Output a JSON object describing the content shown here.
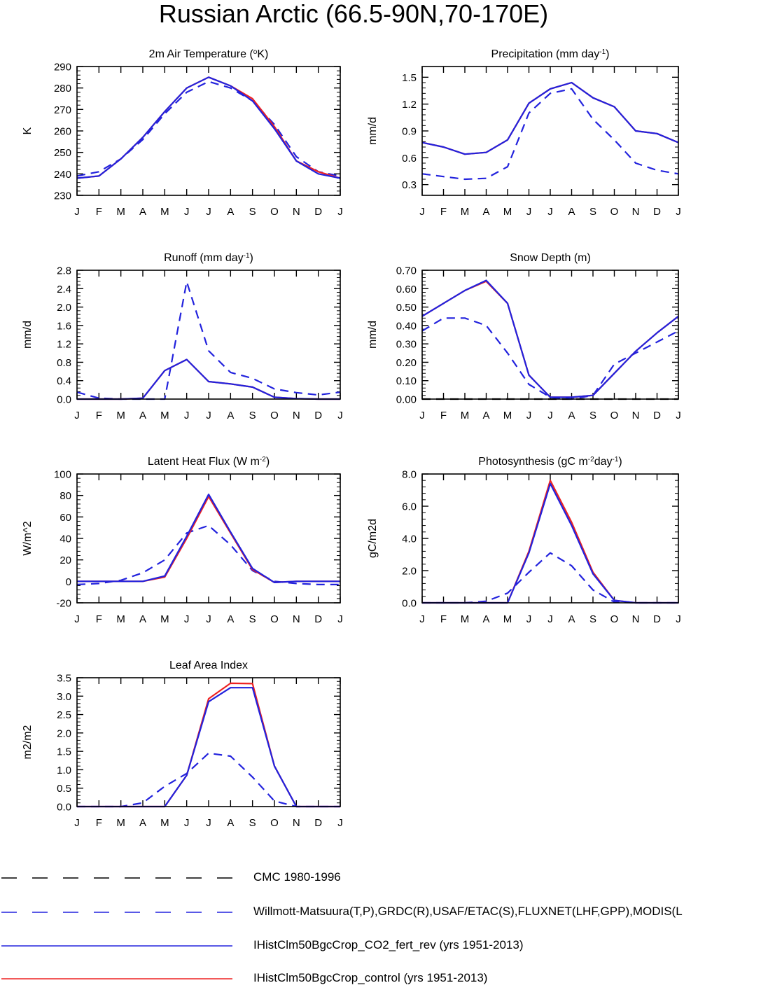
{
  "title": "Russian Arctic (66.5-90N,70-170E)",
  "months": [
    "J",
    "F",
    "M",
    "A",
    "M",
    "J",
    "J",
    "A",
    "S",
    "O",
    "N",
    "D",
    "J"
  ],
  "colors": {
    "blue": "#2222dd",
    "red": "#ee2222",
    "black": "#000000"
  },
  "legend": [
    {
      "label": "CMC 1980-1996",
      "color": "#000000",
      "dash": "dashed"
    },
    {
      "label": "Willmott-Matsuura(T,P),GRDC(R),USAF/ETAC(S),FLUXNET(LHF,GPP),MODIS(L",
      "color": "#2222dd",
      "dash": "dashed"
    },
    {
      "label": "IHistClm50BgcCrop_CO2_fert_rev (yrs 1951-2013)",
      "color": "#2222dd",
      "dash": "solid"
    },
    {
      "label": "IHistClm50BgcCrop_control (yrs 1951-2013)",
      "color": "#ee2222",
      "dash": "solid"
    }
  ],
  "chart_data": [
    {
      "type": "line",
      "title": "2m Air Temperature",
      "title_html": "2m Air Temperature (<tspan baseline-shift=\"super\" font-size=\"10\">o</tspan>K)",
      "ylabel": "K",
      "ylim": [
        230,
        290
      ],
      "yticks": [
        "230",
        "240",
        "250",
        "260",
        "270",
        "280",
        "290"
      ],
      "x": [
        "J",
        "F",
        "M",
        "A",
        "M",
        "J",
        "J",
        "A",
        "S",
        "O",
        "N",
        "D",
        "J"
      ],
      "series": [
        {
          "values": [
            239,
            241,
            247,
            256,
            268,
            278,
            283,
            280,
            274,
            263,
            248,
            241,
            239
          ],
          "color": "#2222dd",
          "dash": "dashed"
        },
        {
          "values": [
            238,
            239,
            247,
            257,
            269,
            280,
            285,
            281,
            275,
            262,
            246,
            241,
            238
          ],
          "color": "#ee2222",
          "dash": "solid"
        },
        {
          "values": [
            238,
            239,
            247,
            257,
            269,
            280,
            285,
            281,
            274,
            261,
            246,
            240,
            238
          ],
          "color": "#2222dd",
          "dash": "solid"
        }
      ]
    },
    {
      "type": "line",
      "title": "Precipitation",
      "title_html": "Precipitation (mm day<tspan baseline-shift=\"super\" font-size=\"10\">-1</tspan>)",
      "ylabel": "mm/d",
      "ylim": [
        0.18,
        1.62
      ],
      "yticks": [
        "0.3",
        "0.6",
        "0.9",
        "1.2",
        "1.5"
      ],
      "x": [
        "J",
        "F",
        "M",
        "A",
        "M",
        "J",
        "J",
        "A",
        "S",
        "O",
        "N",
        "D",
        "J"
      ],
      "series": [
        {
          "values": [
            0.42,
            0.39,
            0.36,
            0.37,
            0.5,
            1.1,
            1.32,
            1.37,
            1.03,
            0.8,
            0.54,
            0.46,
            0.42
          ],
          "color": "#2222dd",
          "dash": "dashed"
        },
        {
          "values": [
            0.77,
            0.72,
            0.64,
            0.66,
            0.8,
            1.21,
            1.37,
            1.44,
            1.27,
            1.17,
            0.9,
            0.87,
            0.77
          ],
          "color": "#ee2222",
          "dash": "solid"
        },
        {
          "values": [
            0.77,
            0.72,
            0.64,
            0.66,
            0.8,
            1.21,
            1.37,
            1.44,
            1.27,
            1.17,
            0.9,
            0.87,
            0.77
          ],
          "color": "#2222dd",
          "dash": "solid"
        }
      ]
    },
    {
      "type": "line",
      "title": "Runoff",
      "title_html": "Runoff (mm day<tspan baseline-shift=\"super\" font-size=\"10\">-1</tspan>)",
      "ylabel": "mm/d",
      "ylim": [
        0,
        2.8
      ],
      "yticks": [
        "0.0",
        "0.4",
        "0.8",
        "1.2",
        "1.6",
        "2.0",
        "2.4",
        "2.8"
      ],
      "x": [
        "J",
        "F",
        "M",
        "A",
        "M",
        "J",
        "J",
        "A",
        "S",
        "O",
        "N",
        "D",
        "J"
      ],
      "series": [
        {
          "values": [
            0.15,
            0.02,
            0.0,
            0.0,
            0.0,
            2.55,
            1.05,
            0.58,
            0.45,
            0.22,
            0.14,
            0.09,
            0.15
          ],
          "color": "#2222dd",
          "dash": "dashed"
        },
        {
          "values": [
            0.0,
            0.0,
            0.0,
            0.02,
            0.62,
            0.86,
            0.38,
            0.33,
            0.26,
            0.04,
            0.01,
            0.0,
            0.0
          ],
          "color": "#ee2222",
          "dash": "solid"
        },
        {
          "values": [
            0.0,
            0.0,
            0.0,
            0.02,
            0.62,
            0.86,
            0.38,
            0.33,
            0.26,
            0.04,
            0.01,
            0.0,
            0.0
          ],
          "color": "#2222dd",
          "dash": "solid"
        }
      ]
    },
    {
      "type": "line",
      "title": "Snow Depth",
      "title_html": "Snow Depth (m)",
      "ylabel": "mm/d",
      "ylim": [
        0,
        0.7
      ],
      "yticks": [
        "0.00",
        "0.10",
        "0.20",
        "0.30",
        "0.40",
        "0.50",
        "0.60",
        "0.70"
      ],
      "x": [
        "J",
        "F",
        "M",
        "A",
        "M",
        "J",
        "J",
        "A",
        "S",
        "O",
        "N",
        "D",
        "J"
      ],
      "series": [
        {
          "values": [
            0.0,
            0.0,
            0.0,
            0.0,
            0.0,
            0.0,
            0.0,
            0.0,
            0.0,
            0.0,
            0.0,
            0.0,
            0.0
          ],
          "color": "#000000",
          "dash": "dashed"
        },
        {
          "values": [
            0.37,
            0.44,
            0.44,
            0.4,
            0.25,
            0.08,
            0.01,
            0.0,
            0.02,
            0.19,
            0.25,
            0.31,
            0.37
          ],
          "color": "#2222dd",
          "dash": "dashed"
        },
        {
          "values": [
            0.45,
            0.52,
            0.59,
            0.64,
            0.52,
            0.13,
            0.01,
            0.01,
            0.02,
            0.14,
            0.26,
            0.36,
            0.45
          ],
          "color": "#ee2222",
          "dash": "solid"
        },
        {
          "values": [
            0.45,
            0.52,
            0.59,
            0.645,
            0.52,
            0.13,
            0.01,
            0.01,
            0.02,
            0.14,
            0.26,
            0.36,
            0.45
          ],
          "color": "#2222dd",
          "dash": "solid"
        }
      ]
    },
    {
      "type": "line",
      "title": "Latent Heat Flux",
      "title_html": "Latent Heat Flux (W m<tspan baseline-shift=\"super\" font-size=\"10\">-2</tspan>)",
      "ylabel": "W/m^2",
      "ylim": [
        -20,
        100
      ],
      "yticks": [
        "-20",
        "0",
        "20",
        "40",
        "60",
        "80",
        "100"
      ],
      "x": [
        "J",
        "F",
        "M",
        "A",
        "M",
        "J",
        "J",
        "A",
        "S",
        "O",
        "N",
        "D",
        "J"
      ],
      "series": [
        {
          "values": [
            -3,
            -2,
            1,
            8,
            20,
            45,
            52,
            34,
            10,
            0,
            -2,
            -3,
            -3
          ],
          "color": "#2222dd",
          "dash": "dashed"
        },
        {
          "values": [
            0,
            0,
            0,
            0,
            4,
            40,
            79,
            45,
            11,
            -1,
            0,
            0,
            0
          ],
          "color": "#ee2222",
          "dash": "solid"
        },
        {
          "values": [
            0,
            0,
            0,
            0,
            5,
            42,
            81,
            46,
            12,
            -1,
            0,
            0,
            0
          ],
          "color": "#2222dd",
          "dash": "solid"
        }
      ]
    },
    {
      "type": "line",
      "title": "Photosynthesis",
      "title_html": "Photosynthesis (gC m<tspan baseline-shift=\"super\" font-size=\"10\">-2</tspan>day<tspan baseline-shift=\"super\" font-size=\"10\">-1</tspan>)",
      "ylabel": "gC/m2d",
      "ylim": [
        0,
        8
      ],
      "yticks": [
        "0.0",
        "2.0",
        "4.0",
        "6.0",
        "8.0"
      ],
      "x": [
        "J",
        "F",
        "M",
        "A",
        "M",
        "J",
        "J",
        "A",
        "S",
        "O",
        "N",
        "D",
        "J"
      ],
      "series": [
        {
          "values": [
            0,
            0,
            0,
            0.1,
            0.6,
            1.9,
            3.1,
            2.3,
            0.8,
            0.05,
            0,
            0,
            0
          ],
          "color": "#2222dd",
          "dash": "dashed"
        },
        {
          "values": [
            0,
            0,
            0,
            0,
            0,
            3.2,
            7.6,
            5.0,
            1.9,
            0.15,
            0,
            0,
            0
          ],
          "color": "#ee2222",
          "dash": "solid"
        },
        {
          "values": [
            0,
            0,
            0,
            0,
            0,
            3.1,
            7.4,
            4.8,
            1.8,
            0.15,
            0,
            0,
            0
          ],
          "color": "#2222dd",
          "dash": "solid"
        }
      ]
    },
    {
      "type": "line",
      "title": "Leaf Area Index",
      "title_html": "Leaf Area Index",
      "ylabel": "m2/m2",
      "ylim": [
        0,
        3.5
      ],
      "yticks": [
        "0.0",
        "0.5",
        "1.0",
        "1.5",
        "2.0",
        "2.5",
        "3.0",
        "3.5"
      ],
      "x": [
        "J",
        "F",
        "M",
        "A",
        "M",
        "J",
        "J",
        "A",
        "S",
        "O",
        "N",
        "D",
        "J"
      ],
      "series": [
        {
          "values": [
            0,
            0,
            0,
            0.1,
            0.55,
            0.9,
            1.45,
            1.37,
            0.8,
            0.15,
            0,
            0,
            0
          ],
          "color": "#2222dd",
          "dash": "dashed"
        },
        {
          "values": [
            0,
            0,
            0,
            0,
            0,
            0.85,
            2.93,
            3.35,
            3.34,
            1.1,
            0,
            0,
            0
          ],
          "color": "#ee2222",
          "dash": "solid"
        },
        {
          "values": [
            0,
            0,
            0,
            0,
            0,
            0.85,
            2.85,
            3.23,
            3.23,
            1.1,
            0,
            0,
            0
          ],
          "color": "#2222dd",
          "dash": "solid"
        }
      ]
    }
  ]
}
